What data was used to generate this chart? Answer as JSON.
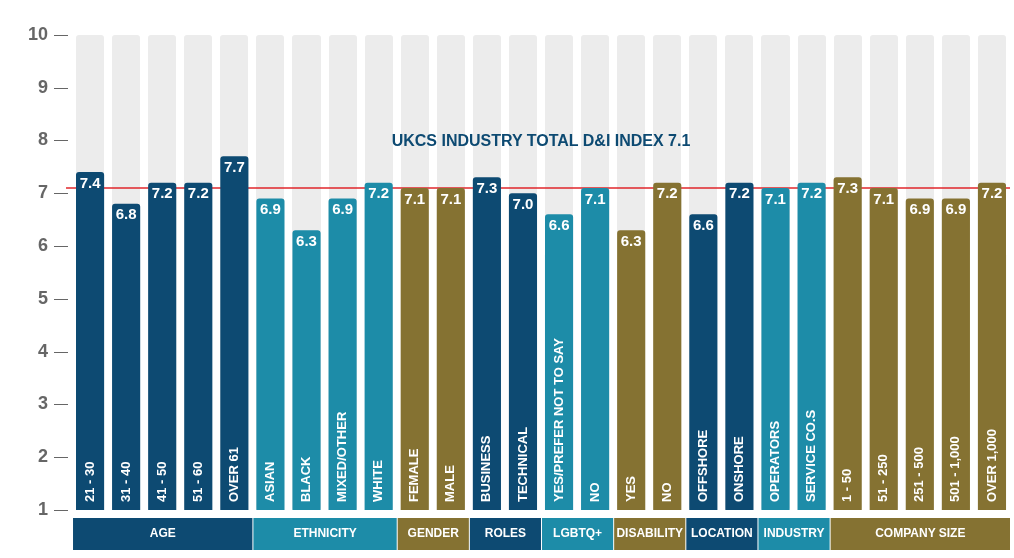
{
  "chart_data": {
    "type": "bar",
    "categories": [
      "21 - 30",
      "31 - 40",
      "41 - 50",
      "51 - 60",
      "OVER 61",
      "ASIAN",
      "BLACK",
      "MIXED/OTHER",
      "WHITE",
      "FEMALE",
      "MALE",
      "BUSINESS",
      "TECHNICAL",
      "YES/PREFER NOT TO SAY",
      "NO",
      "YES",
      "NO",
      "OFFSHORE",
      "ONSHORE",
      "OPERATORS",
      "SERVICE CO.S",
      "1 - 50",
      "51 - 250",
      "251 - 500",
      "501 - 1,000",
      "OVER 1,000"
    ],
    "series": [
      {
        "colors": [
          "#0d4a72",
          "#0d4a72",
          "#0d4a72",
          "#0d4a72",
          "#0d4a72",
          "#1d8ca8",
          "#1d8ca8",
          "#1d8ca8",
          "#1d8ca8",
          "#857232",
          "#857232",
          "#0d4a72",
          "#0d4a72",
          "#1d8ca8",
          "#1d8ca8",
          "#857232",
          "#857232",
          "#0d4a72",
          "#0d4a72",
          "#1d8ca8",
          "#1d8ca8",
          "#857232",
          "#857232",
          "#857232",
          "#857232",
          "#857232"
        ],
        "values": [
          7.4,
          6.8,
          7.2,
          7.2,
          7.7,
          6.9,
          6.3,
          6.9,
          7.2,
          7.1,
          7.1,
          7.3,
          7.0,
          6.6,
          7.1,
          6.3,
          7.2,
          6.6,
          7.2,
          7.1,
          7.2,
          7.3,
          7.1,
          6.9,
          6.9,
          7.2
        ],
        "value_labels": [
          "7.4",
          "6.8",
          "7.2",
          "7.2",
          "7.7",
          "6.9",
          "6.3",
          "6.9",
          "7.2",
          "7.1",
          "7.1",
          "7.3",
          "7.0",
          "6.6",
          "7.1",
          "6.3",
          "7.2",
          "6.6",
          "7.2",
          "7.1",
          "7.2",
          "7.3",
          "7.1",
          "6.9",
          "6.9",
          "7.2"
        ]
      }
    ],
    "ylim": [
      1,
      10
    ],
    "yticks": [
      1,
      2,
      3,
      4,
      5,
      6,
      7,
      8,
      9,
      10
    ],
    "grid": false,
    "legend": false,
    "ref_lines": [
      {
        "axis": "y",
        "value": 7.1,
        "label": "UKCS INDUSTRY TOTAL D&I INDEX 7.1",
        "color": "#e0262b"
      }
    ],
    "annotations": [
      "AGE",
      "ETHNICITY",
      "GENDER",
      "ROLES",
      "LGBTQ+",
      "DISABILITY",
      "LOCATION",
      "INDUSTRY",
      "COMPANY SIZE"
    ]
  }
}
